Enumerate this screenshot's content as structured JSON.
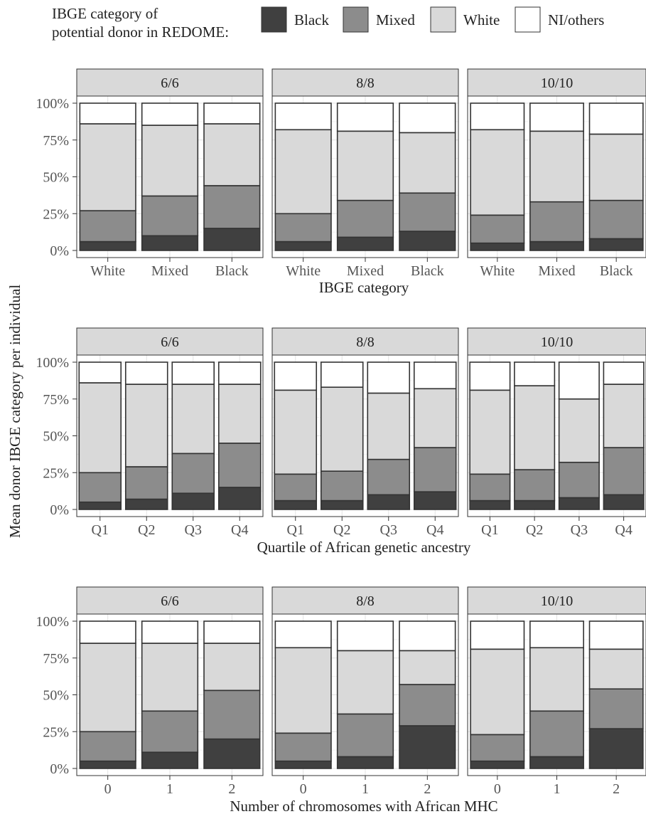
{
  "legend": {
    "title_line1": "IBGE category of",
    "title_line2": "potential donor in REDOME:",
    "items": [
      {
        "label": "Black",
        "color": "#404040"
      },
      {
        "label": "Mixed",
        "color": "#8c8c8c"
      },
      {
        "label": "White",
        "color": "#d9d9d9"
      },
      {
        "label": "NI/others",
        "color": "#ffffff"
      }
    ]
  },
  "y_axis_label": "Mean  donor  IBGE  category  per  individual",
  "y_tick_labels": [
    "0%",
    "25%",
    "50%",
    "75%",
    "100%"
  ],
  "chart_data": [
    {
      "type": "bar",
      "stacked": true,
      "xlabel": "IBGE category",
      "ylim": [
        0,
        100
      ],
      "grid": true,
      "legend_position": "top",
      "facets": [
        {
          "title": "6/6",
          "categories": [
            "White",
            "Mixed",
            "Black"
          ],
          "series": [
            {
              "name": "Black",
              "values": [
                6,
                10,
                15
              ]
            },
            {
              "name": "Mixed",
              "values": [
                21,
                27,
                29
              ]
            },
            {
              "name": "White",
              "values": [
                59,
                48,
                42
              ]
            },
            {
              "name": "NI/others",
              "values": [
                14,
                15,
                14
              ]
            }
          ]
        },
        {
          "title": "8/8",
          "categories": [
            "White",
            "Mixed",
            "Black"
          ],
          "series": [
            {
              "name": "Black",
              "values": [
                6,
                9,
                13
              ]
            },
            {
              "name": "Mixed",
              "values": [
                19,
                25,
                26
              ]
            },
            {
              "name": "White",
              "values": [
                57,
                47,
                41
              ]
            },
            {
              "name": "NI/others",
              "values": [
                18,
                19,
                20
              ]
            }
          ]
        },
        {
          "title": "10/10",
          "categories": [
            "White",
            "Mixed",
            "Black"
          ],
          "series": [
            {
              "name": "Black",
              "values": [
                5,
                6,
                8
              ]
            },
            {
              "name": "Mixed",
              "values": [
                19,
                27,
                26
              ]
            },
            {
              "name": "White",
              "values": [
                58,
                48,
                45
              ]
            },
            {
              "name": "NI/others",
              "values": [
                18,
                19,
                21
              ]
            }
          ]
        }
      ]
    },
    {
      "type": "bar",
      "stacked": true,
      "xlabel": "Quartile of African genetic ancestry",
      "ylim": [
        0,
        100
      ],
      "grid": true,
      "facets": [
        {
          "title": "6/6",
          "categories": [
            "Q1",
            "Q2",
            "Q3",
            "Q4"
          ],
          "series": [
            {
              "name": "Black",
              "values": [
                5,
                7,
                11,
                15
              ]
            },
            {
              "name": "Mixed",
              "values": [
                20,
                22,
                27,
                30
              ]
            },
            {
              "name": "White",
              "values": [
                61,
                56,
                47,
                40
              ]
            },
            {
              "name": "NI/others",
              "values": [
                14,
                15,
                15,
                15
              ]
            }
          ]
        },
        {
          "title": "8/8",
          "categories": [
            "Q1",
            "Q2",
            "Q3",
            "Q4"
          ],
          "series": [
            {
              "name": "Black",
              "values": [
                6,
                6,
                10,
                12
              ]
            },
            {
              "name": "Mixed",
              "values": [
                18,
                20,
                24,
                30
              ]
            },
            {
              "name": "White",
              "values": [
                57,
                57,
                45,
                40
              ]
            },
            {
              "name": "NI/others",
              "values": [
                19,
                17,
                21,
                18
              ]
            }
          ]
        },
        {
          "title": "10/10",
          "categories": [
            "Q1",
            "Q2",
            "Q3",
            "Q4"
          ],
          "series": [
            {
              "name": "Black",
              "values": [
                6,
                6,
                8,
                10
              ]
            },
            {
              "name": "Mixed",
              "values": [
                18,
                21,
                24,
                32
              ]
            },
            {
              "name": "White",
              "values": [
                57,
                57,
                43,
                43
              ]
            },
            {
              "name": "NI/others",
              "values": [
                19,
                16,
                25,
                15
              ]
            }
          ]
        }
      ]
    },
    {
      "type": "bar",
      "stacked": true,
      "xlabel": "Number of chromosomes with African MHC",
      "ylim": [
        0,
        100
      ],
      "grid": true,
      "facets": [
        {
          "title": "6/6",
          "categories": [
            "0",
            "1",
            "2"
          ],
          "series": [
            {
              "name": "Black",
              "values": [
                5,
                11,
                20
              ]
            },
            {
              "name": "Mixed",
              "values": [
                20,
                28,
                33
              ]
            },
            {
              "name": "White",
              "values": [
                60,
                46,
                32
              ]
            },
            {
              "name": "NI/others",
              "values": [
                15,
                15,
                15
              ]
            }
          ]
        },
        {
          "title": "8/8",
          "categories": [
            "0",
            "1",
            "2"
          ],
          "series": [
            {
              "name": "Black",
              "values": [
                5,
                8,
                29
              ]
            },
            {
              "name": "Mixed",
              "values": [
                19,
                29,
                28
              ]
            },
            {
              "name": "White",
              "values": [
                58,
                43,
                23
              ]
            },
            {
              "name": "NI/others",
              "values": [
                18,
                20,
                20
              ]
            }
          ]
        },
        {
          "title": "10/10",
          "categories": [
            "0",
            "1",
            "2"
          ],
          "series": [
            {
              "name": "Black",
              "values": [
                5,
                8,
                27
              ]
            },
            {
              "name": "Mixed",
              "values": [
                18,
                31,
                27
              ]
            },
            {
              "name": "White",
              "values": [
                58,
                43,
                27
              ]
            },
            {
              "name": "NI/others",
              "values": [
                19,
                18,
                19
              ]
            }
          ]
        }
      ]
    }
  ]
}
